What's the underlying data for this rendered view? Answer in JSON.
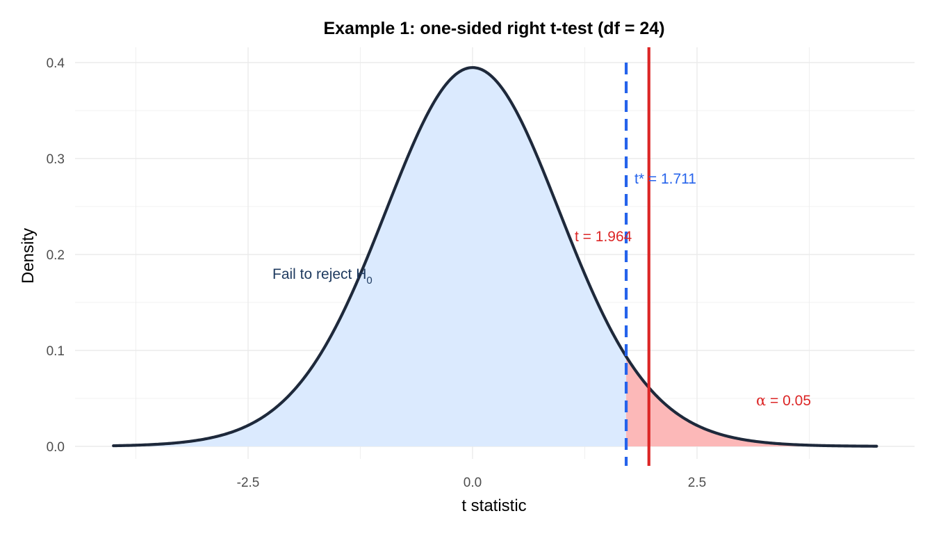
{
  "chart_data": {
    "type": "area",
    "title": "Example 1: one-sided right t-test (df = 24)",
    "xlabel": "t statistic",
    "ylabel": "Density",
    "df": 24,
    "xlim": [
      -4,
      4.5
    ],
    "ylim": [
      0,
      0.4
    ],
    "x_ticks": [
      -2.5,
      0.0,
      2.5
    ],
    "x_tick_labels": [
      "-2.5",
      "0.0",
      "2.5"
    ],
    "y_ticks": [
      0,
      0.1,
      0.2,
      0.3,
      0.4
    ],
    "y_tick_labels": [
      "0.0",
      "0.1",
      "0.2",
      "0.3",
      "0.4"
    ],
    "grid": true,
    "critical_value": 1.711,
    "observed_t": 1.964,
    "alpha": 0.05,
    "annotations": {
      "critical_label": "t* = 1.711",
      "observed_label": "t = 1.964",
      "fail_region_label": "Fail to reject H",
      "fail_region_subscript": "0",
      "alpha_symbol": "α",
      "alpha_label": " = 0.05"
    },
    "colors": {
      "curve": "#1e293b",
      "accept_fill": "#dbeafe",
      "reject_fill": "#fcb8b8",
      "critical_line": "#2563eb",
      "observed_line": "#dc2626",
      "fail_text": "#1e3a5f",
      "grid": "#ebebeb"
    }
  }
}
